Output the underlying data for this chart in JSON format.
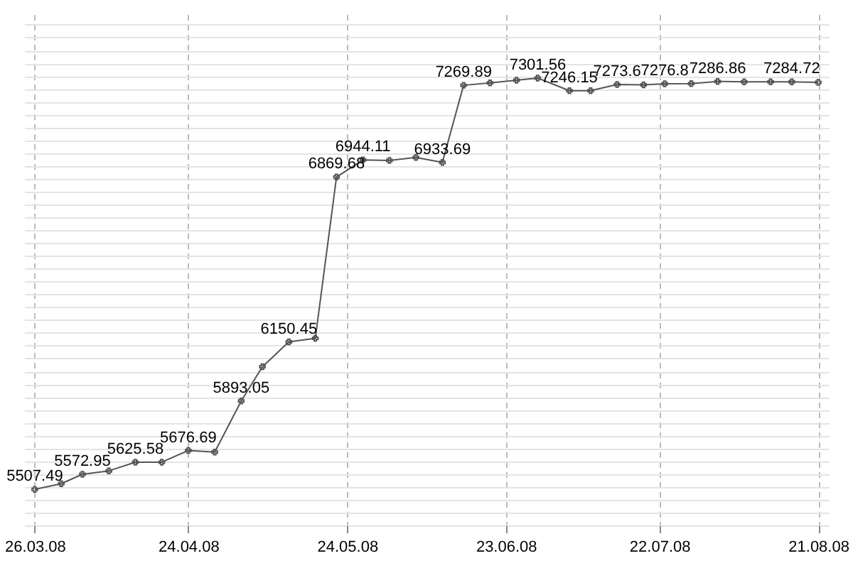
{
  "chart_data": {
    "type": "line",
    "x": [
      "2008-03-26",
      "2008-03-31",
      "2008-04-04",
      "2008-04-09",
      "2008-04-14",
      "2008-04-19",
      "2008-04-24",
      "2008-04-29",
      "2008-05-04",
      "2008-05-08",
      "2008-05-13",
      "2008-05-18",
      "2008-05-22",
      "2008-05-27",
      "2008-06-01",
      "2008-06-06",
      "2008-06-11",
      "2008-06-15",
      "2008-06-20",
      "2008-06-25",
      "2008-06-29",
      "2008-07-05",
      "2008-07-09",
      "2008-07-14",
      "2008-07-19",
      "2008-07-23",
      "2008-07-28",
      "2008-08-02",
      "2008-08-07",
      "2008-08-12",
      "2008-08-16",
      "2008-08-21"
    ],
    "series": [
      {
        "color": "#555555",
        "values": [
          5507.49,
          5532,
          5572.95,
          5588,
          5625.58,
          5626,
          5676.69,
          5670,
          5893.05,
          6042,
          6150.45,
          6166,
          6869.68,
          6944.11,
          6942,
          6955,
          6933.69,
          7269.89,
          7280,
          7292,
          7301.56,
          7246.15,
          7246,
          7273.6,
          7272,
          7276.8,
          7277,
          7286.86,
          7285,
          7285,
          7284.72,
          7283
        ],
        "value_labels": [
          "5507.49",
          null,
          "5572.95",
          null,
          "5625.58",
          null,
          "5676.69",
          null,
          "5893.05",
          null,
          "6150.45",
          null,
          "6869.68",
          "6944.11",
          null,
          null,
          "6933.69",
          "7269.89",
          null,
          null,
          "7301.56",
          "7246.15",
          null,
          "7273.6",
          null,
          "7276.8",
          null,
          "7286.86",
          null,
          null,
          "7284.72",
          null
        ]
      }
    ],
    "xlim": [
      "2008-03-24",
      "2008-08-23"
    ],
    "xticks": [
      {
        "value": "2008-03-26",
        "label": "26.03.08"
      },
      {
        "value": "2008-04-24",
        "label": "24.04.08"
      },
      {
        "value": "2008-05-24",
        "label": "24.05.08"
      },
      {
        "value": "2008-06-23",
        "label": "23.06.08"
      },
      {
        "value": "2008-07-22",
        "label": "22.07.08"
      },
      {
        "value": "2008-08-21",
        "label": "21.08.08"
      }
    ],
    "ylim": [
      5350,
      7580
    ],
    "yticks": [
      {
        "value": 5350,
        "label": null
      },
      {
        "value": 5406,
        "label": null
      },
      {
        "value": 5462,
        "label": null
      },
      {
        "value": 5518,
        "label": null
      },
      {
        "value": 5574,
        "label": null
      },
      {
        "value": 5630,
        "label": null
      },
      {
        "value": 5686,
        "label": null
      },
      {
        "value": 5742,
        "label": null
      },
      {
        "value": 5798,
        "label": null
      },
      {
        "value": 5854,
        "label": null
      },
      {
        "value": 5910,
        "label": null
      },
      {
        "value": 5966,
        "label": null
      },
      {
        "value": 6022,
        "label": null
      },
      {
        "value": 6078,
        "label": null
      },
      {
        "value": 6134,
        "label": null
      },
      {
        "value": 6190,
        "label": null
      },
      {
        "value": 6246,
        "label": null
      },
      {
        "value": 6302,
        "label": null
      },
      {
        "value": 6358,
        "label": null
      },
      {
        "value": 6414,
        "label": null
      },
      {
        "value": 6470,
        "label": null
      },
      {
        "value": 6526,
        "label": null
      },
      {
        "value": 6582,
        "label": null
      },
      {
        "value": 6638,
        "label": null
      },
      {
        "value": 6694,
        "label": null
      },
      {
        "value": 6750,
        "label": null
      },
      {
        "value": 6806,
        "label": null
      },
      {
        "value": 6862,
        "label": null
      },
      {
        "value": 6918,
        "label": null
      },
      {
        "value": 6974,
        "label": null
      },
      {
        "value": 7030,
        "label": null
      },
      {
        "value": 7086,
        "label": null
      },
      {
        "value": 7142,
        "label": null
      },
      {
        "value": 7198,
        "label": null
      },
      {
        "value": 7254,
        "label": null
      },
      {
        "value": 7310,
        "label": null
      },
      {
        "value": 7366,
        "label": null
      },
      {
        "value": 7422,
        "label": null
      },
      {
        "value": 7478,
        "label": null
      },
      {
        "value": 7534,
        "label": null
      }
    ],
    "tick_labels": "x",
    "grid": true,
    "marker": "cross",
    "line_style": "solid"
  }
}
